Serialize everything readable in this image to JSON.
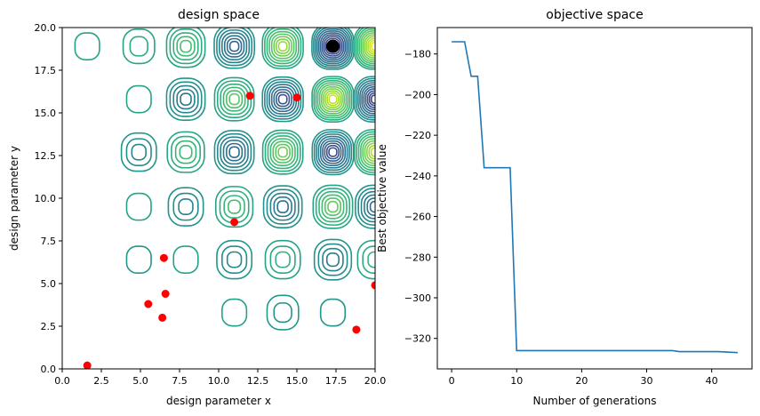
{
  "chart_data": [
    {
      "type": "contour",
      "title": "design space",
      "xlabel": "design parameter x",
      "ylabel": "design parameter y",
      "xlim": [
        0,
        20
      ],
      "ylim": [
        0,
        20
      ],
      "xticks": [
        "0.0",
        "2.5",
        "5.0",
        "7.5",
        "10.0",
        "12.5",
        "15.0",
        "17.5",
        "20.0"
      ],
      "yticks": [
        "0.0",
        "2.5",
        "5.0",
        "7.5",
        "10.0",
        "12.5",
        "15.0",
        "17.5",
        "20.0"
      ],
      "colormap": "viridis",
      "contour_cells": [
        {
          "x": 1.6,
          "y": 18.9,
          "amp": 0.12
        },
        {
          "x": 4.9,
          "y": 18.9,
          "amp": 0.22
        },
        {
          "x": 7.9,
          "y": 18.9,
          "amp": 0.42
        },
        {
          "x": 11.0,
          "y": 18.9,
          "amp": -0.6
        },
        {
          "x": 14.1,
          "y": 18.9,
          "amp": 0.75
        },
        {
          "x": 17.3,
          "y": 18.9,
          "amp": -1.0
        },
        {
          "x": 20.0,
          "y": 18.9,
          "amp": 1.0
        },
        {
          "x": 4.9,
          "y": 15.8,
          "amp": 0.12
        },
        {
          "x": 7.9,
          "y": 15.8,
          "amp": -0.42
        },
        {
          "x": 11.0,
          "y": 15.8,
          "amp": 0.5
        },
        {
          "x": 14.1,
          "y": 15.8,
          "amp": -0.75
        },
        {
          "x": 17.3,
          "y": 15.8,
          "amp": 0.9
        },
        {
          "x": 20.0,
          "y": 15.8,
          "amp": -0.9
        },
        {
          "x": 4.9,
          "y": 12.7,
          "amp": -0.25
        },
        {
          "x": 7.9,
          "y": 12.7,
          "amp": 0.4
        },
        {
          "x": 11.0,
          "y": 12.7,
          "amp": -0.55
        },
        {
          "x": 14.1,
          "y": 12.7,
          "amp": 0.6
        },
        {
          "x": 17.3,
          "y": 12.7,
          "amp": -0.8
        },
        {
          "x": 20.0,
          "y": 12.7,
          "amp": 0.85
        },
        {
          "x": 4.9,
          "y": 9.5,
          "amp": 0.12
        },
        {
          "x": 7.9,
          "y": 9.5,
          "amp": -0.3
        },
        {
          "x": 11.0,
          "y": 9.5,
          "amp": 0.4
        },
        {
          "x": 14.1,
          "y": 9.5,
          "amp": -0.45
        },
        {
          "x": 17.3,
          "y": 9.5,
          "amp": 0.55
        },
        {
          "x": 20.0,
          "y": 9.5,
          "amp": -0.5
        },
        {
          "x": 4.9,
          "y": 6.4,
          "amp": -0.1
        },
        {
          "x": 7.9,
          "y": 6.4,
          "amp": 0.12
        },
        {
          "x": 11.0,
          "y": 6.4,
          "amp": -0.25
        },
        {
          "x": 14.1,
          "y": 6.4,
          "amp": 0.25
        },
        {
          "x": 17.3,
          "y": 6.4,
          "amp": -0.35
        },
        {
          "x": 20.0,
          "y": 6.4,
          "amp": 0.3
        },
        {
          "x": 11.0,
          "y": 3.3,
          "amp": 0.1
        },
        {
          "x": 14.1,
          "y": 3.3,
          "amp": -0.15
        },
        {
          "x": 17.3,
          "y": 3.3,
          "amp": -0.12
        }
      ],
      "scatter_points": [
        {
          "x": 1.6,
          "y": 0.2
        },
        {
          "x": 5.5,
          "y": 3.8
        },
        {
          "x": 6.4,
          "y": 3.0
        },
        {
          "x": 6.5,
          "y": 6.5
        },
        {
          "x": 6.6,
          "y": 4.4
        },
        {
          "x": 11.0,
          "y": 8.6
        },
        {
          "x": 12.0,
          "y": 16.0
        },
        {
          "x": 15.0,
          "y": 15.9
        },
        {
          "x": 18.8,
          "y": 2.3
        },
        {
          "x": 20.0,
          "y": 4.9
        }
      ],
      "scatter_color": "#ff0000",
      "best_point": {
        "x": 17.3,
        "y": 18.9
      },
      "best_point_color": "#000000"
    },
    {
      "type": "line",
      "title": "objective space",
      "xlabel": "Number of generations",
      "ylabel": "Best objective value",
      "xlim": [
        -2.2,
        46.2
      ],
      "ylim": [
        -335,
        -167
      ],
      "xticks": [
        0,
        10,
        20,
        30,
        40
      ],
      "yticks": [
        -180,
        -200,
        -220,
        -240,
        -260,
        -280,
        -300,
        -320
      ],
      "series": [
        {
          "color": "#1f77b4",
          "x": [
            0,
            2,
            3,
            4,
            5,
            9,
            10,
            34,
            35,
            41,
            44
          ],
          "y": [
            -174,
            -174,
            -191,
            -191,
            -236,
            -236,
            -326,
            -326,
            -326.5,
            -326.5,
            -327
          ]
        }
      ]
    }
  ]
}
